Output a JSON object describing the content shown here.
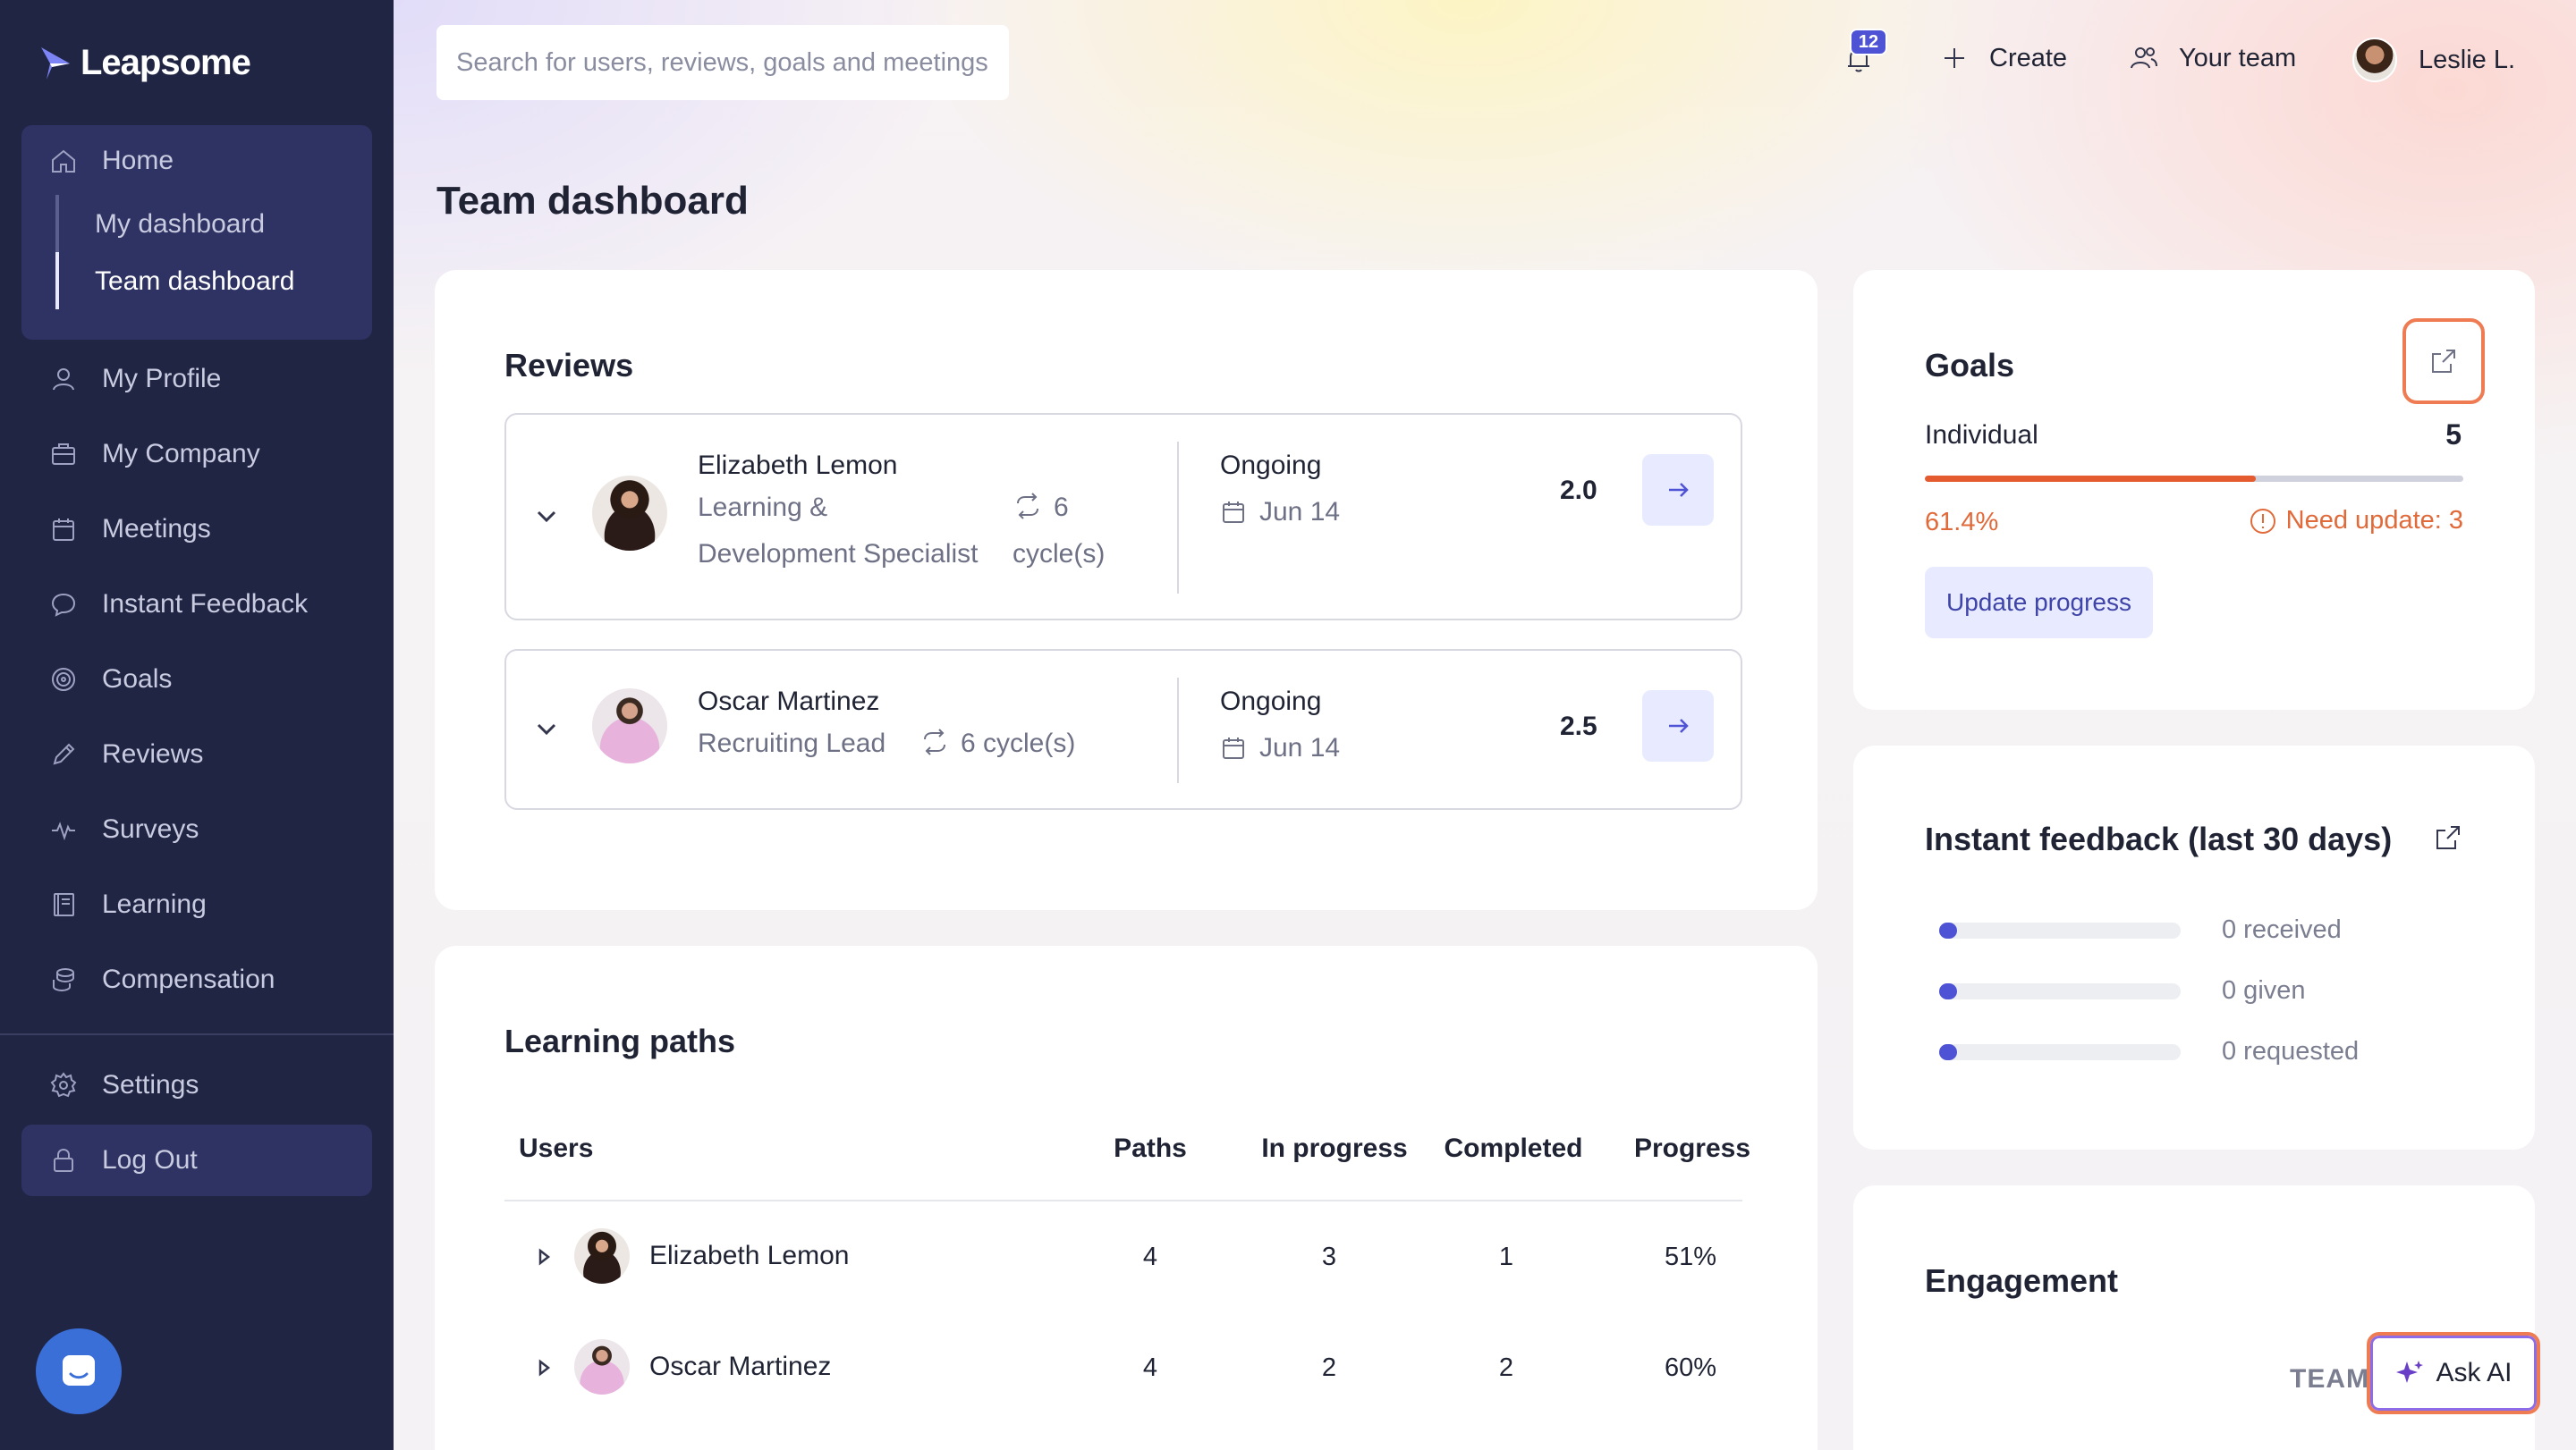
{
  "app": {
    "logo_text": "Leapsome"
  },
  "sidebar": {
    "home": "Home",
    "sub_items": [
      "My dashboard",
      "Team dashboard"
    ],
    "items": [
      "My Profile",
      "My Company",
      "Meetings",
      "Instant Feedback",
      "Goals",
      "Reviews",
      "Surveys",
      "Learning",
      "Compensation"
    ],
    "settings": "Settings",
    "logout": "Log Out"
  },
  "topbar": {
    "search_placeholder": "Search for users, reviews, goals and meetings",
    "notification_count": "12",
    "create": "Create",
    "your_team": "Your team",
    "user_name": "Leslie L."
  },
  "page": {
    "title": "Team dashboard"
  },
  "reviews": {
    "title": "Reviews",
    "rows": [
      {
        "name": "Elizabeth Lemon",
        "role_line1": "Learning &",
        "role_line2": "Development Specialist",
        "cycles_line1": "6",
        "cycles_line2": "cycle(s)",
        "status": "Ongoing",
        "date": "Jun 14",
        "score": "2.0"
      },
      {
        "name": "Oscar Martinez",
        "role_line1": "Recruiting Lead",
        "cycles_line1": "6 cycle(s)",
        "status": "Ongoing",
        "date": "Jun 14",
        "score": "2.5"
      }
    ]
  },
  "learning_paths": {
    "title": "Learning paths",
    "columns": [
      "Users",
      "Paths",
      "In progress",
      "Completed",
      "Progress"
    ],
    "rows": [
      {
        "user": "Elizabeth Lemon",
        "paths": "4",
        "in_progress": "3",
        "completed": "1",
        "progress": "51%"
      },
      {
        "user": "Oscar Martinez",
        "paths": "4",
        "in_progress": "2",
        "completed": "2",
        "progress": "60%"
      }
    ]
  },
  "goals": {
    "title": "Goals",
    "category": "Individual",
    "count": "5",
    "progress_pct": "61.4%",
    "progress_value": 0.614,
    "need_update": "Need update: 3",
    "update_button": "Update progress"
  },
  "instant_feedback": {
    "title": "Instant feedback (last 30 days)",
    "rows": [
      "0 received",
      "0 given",
      "0 requested"
    ]
  },
  "engagement": {
    "title": "Engagement",
    "team_label": "TEAM"
  },
  "ask_ai": "Ask AI",
  "colors": {
    "sidebar_bg": "#212544",
    "accent": "#4d53d4",
    "orange": "#e06a3a"
  }
}
